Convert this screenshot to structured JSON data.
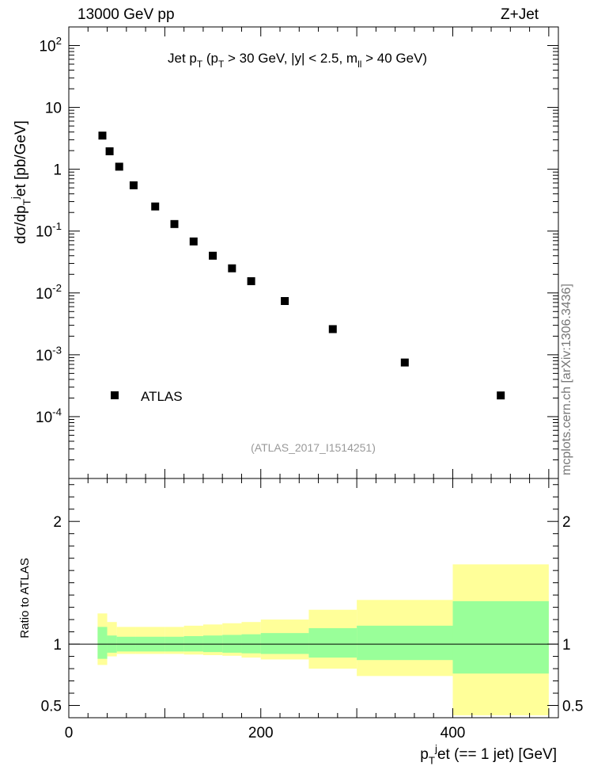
{
  "header": {
    "left": "13000 GeV pp",
    "right": "Z+Jet"
  },
  "side_label": "mcplots.cern.ch [arXiv:1306.3436]",
  "chart_data": [
    {
      "type": "scatter",
      "title": "Jet p_T (p_T > 30 GeV, |y| < 2.5, m_ll > 40 GeV)",
      "ylabel": "dσ/dp_T^j et [pb/GeV]",
      "yscale": "log",
      "ylim": [
        1e-05,
        200
      ],
      "xlim": [
        0,
        510
      ],
      "y_ticks": [
        "10^-4",
        "10^-3",
        "10^-2",
        "10^-1",
        "1",
        "10",
        "10^2"
      ],
      "legend": {
        "entries": [
          "ATLAS"
        ],
        "placement": "bottom-left"
      },
      "watermark": "(ATLAS_2017_I1514251)",
      "series": [
        {
          "name": "ATLAS",
          "x": [
            35,
            42.5,
            52.5,
            67.5,
            90,
            110,
            130,
            150,
            170,
            190,
            225,
            275,
            350,
            450
          ],
          "y": [
            3.5,
            1.95,
            1.1,
            0.55,
            0.25,
            0.13,
            0.068,
            0.04,
            0.025,
            0.0155,
            0.0074,
            0.0026,
            0.00075,
            0.00022
          ]
        }
      ]
    },
    {
      "type": "area",
      "ylabel": "Ratio to ATLAS",
      "xlabel": "p_T^j et (== 1 jet) [GeV]",
      "xlim": [
        0,
        510
      ],
      "ylim": [
        0.4,
        2.35
      ],
      "x_ticks": [
        "0",
        "200",
        "400"
      ],
      "y_ticks": [
        "0.5",
        "1",
        "2"
      ],
      "bins": [
        {
          "x0": 30,
          "x1": 40,
          "stat_lo": 0.88,
          "stat_hi": 1.14,
          "tot_lo": 0.83,
          "tot_hi": 1.25
        },
        {
          "x0": 40,
          "x1": 50,
          "stat_lo": 0.93,
          "stat_hi": 1.07,
          "tot_lo": 0.9,
          "tot_hi": 1.18
        },
        {
          "x0": 50,
          "x1": 70,
          "stat_lo": 0.94,
          "stat_hi": 1.06,
          "tot_lo": 0.92,
          "tot_hi": 1.14
        },
        {
          "x0": 70,
          "x1": 100,
          "stat_lo": 0.94,
          "stat_hi": 1.06,
          "tot_lo": 0.92,
          "tot_hi": 1.14
        },
        {
          "x0": 100,
          "x1": 120,
          "stat_lo": 0.94,
          "stat_hi": 1.06,
          "tot_lo": 0.92,
          "tot_hi": 1.14
        },
        {
          "x0": 120,
          "x1": 140,
          "stat_lo": 0.94,
          "stat_hi": 1.065,
          "tot_lo": 0.915,
          "tot_hi": 1.15
        },
        {
          "x0": 140,
          "x1": 160,
          "stat_lo": 0.935,
          "stat_hi": 1.07,
          "tot_lo": 0.91,
          "tot_hi": 1.16
        },
        {
          "x0": 160,
          "x1": 180,
          "stat_lo": 0.93,
          "stat_hi": 1.075,
          "tot_lo": 0.905,
          "tot_hi": 1.17
        },
        {
          "x0": 180,
          "x1": 200,
          "stat_lo": 0.925,
          "stat_hi": 1.08,
          "tot_lo": 0.89,
          "tot_hi": 1.18
        },
        {
          "x0": 200,
          "x1": 250,
          "stat_lo": 0.92,
          "stat_hi": 1.09,
          "tot_lo": 0.875,
          "tot_hi": 1.2
        },
        {
          "x0": 250,
          "x1": 300,
          "stat_lo": 0.89,
          "stat_hi": 1.13,
          "tot_lo": 0.8,
          "tot_hi": 1.28
        },
        {
          "x0": 300,
          "x1": 400,
          "stat_lo": 0.87,
          "stat_hi": 1.15,
          "tot_lo": 0.74,
          "tot_hi": 1.36
        },
        {
          "x0": 400,
          "x1": 500,
          "stat_lo": 0.76,
          "stat_hi": 1.35,
          "tot_lo": 0.42,
          "tot_hi": 1.65
        }
      ],
      "reference_line": 1,
      "colors": {
        "stat": "#99ff99",
        "total": "#ffff99",
        "marker": "#000000"
      }
    }
  ]
}
